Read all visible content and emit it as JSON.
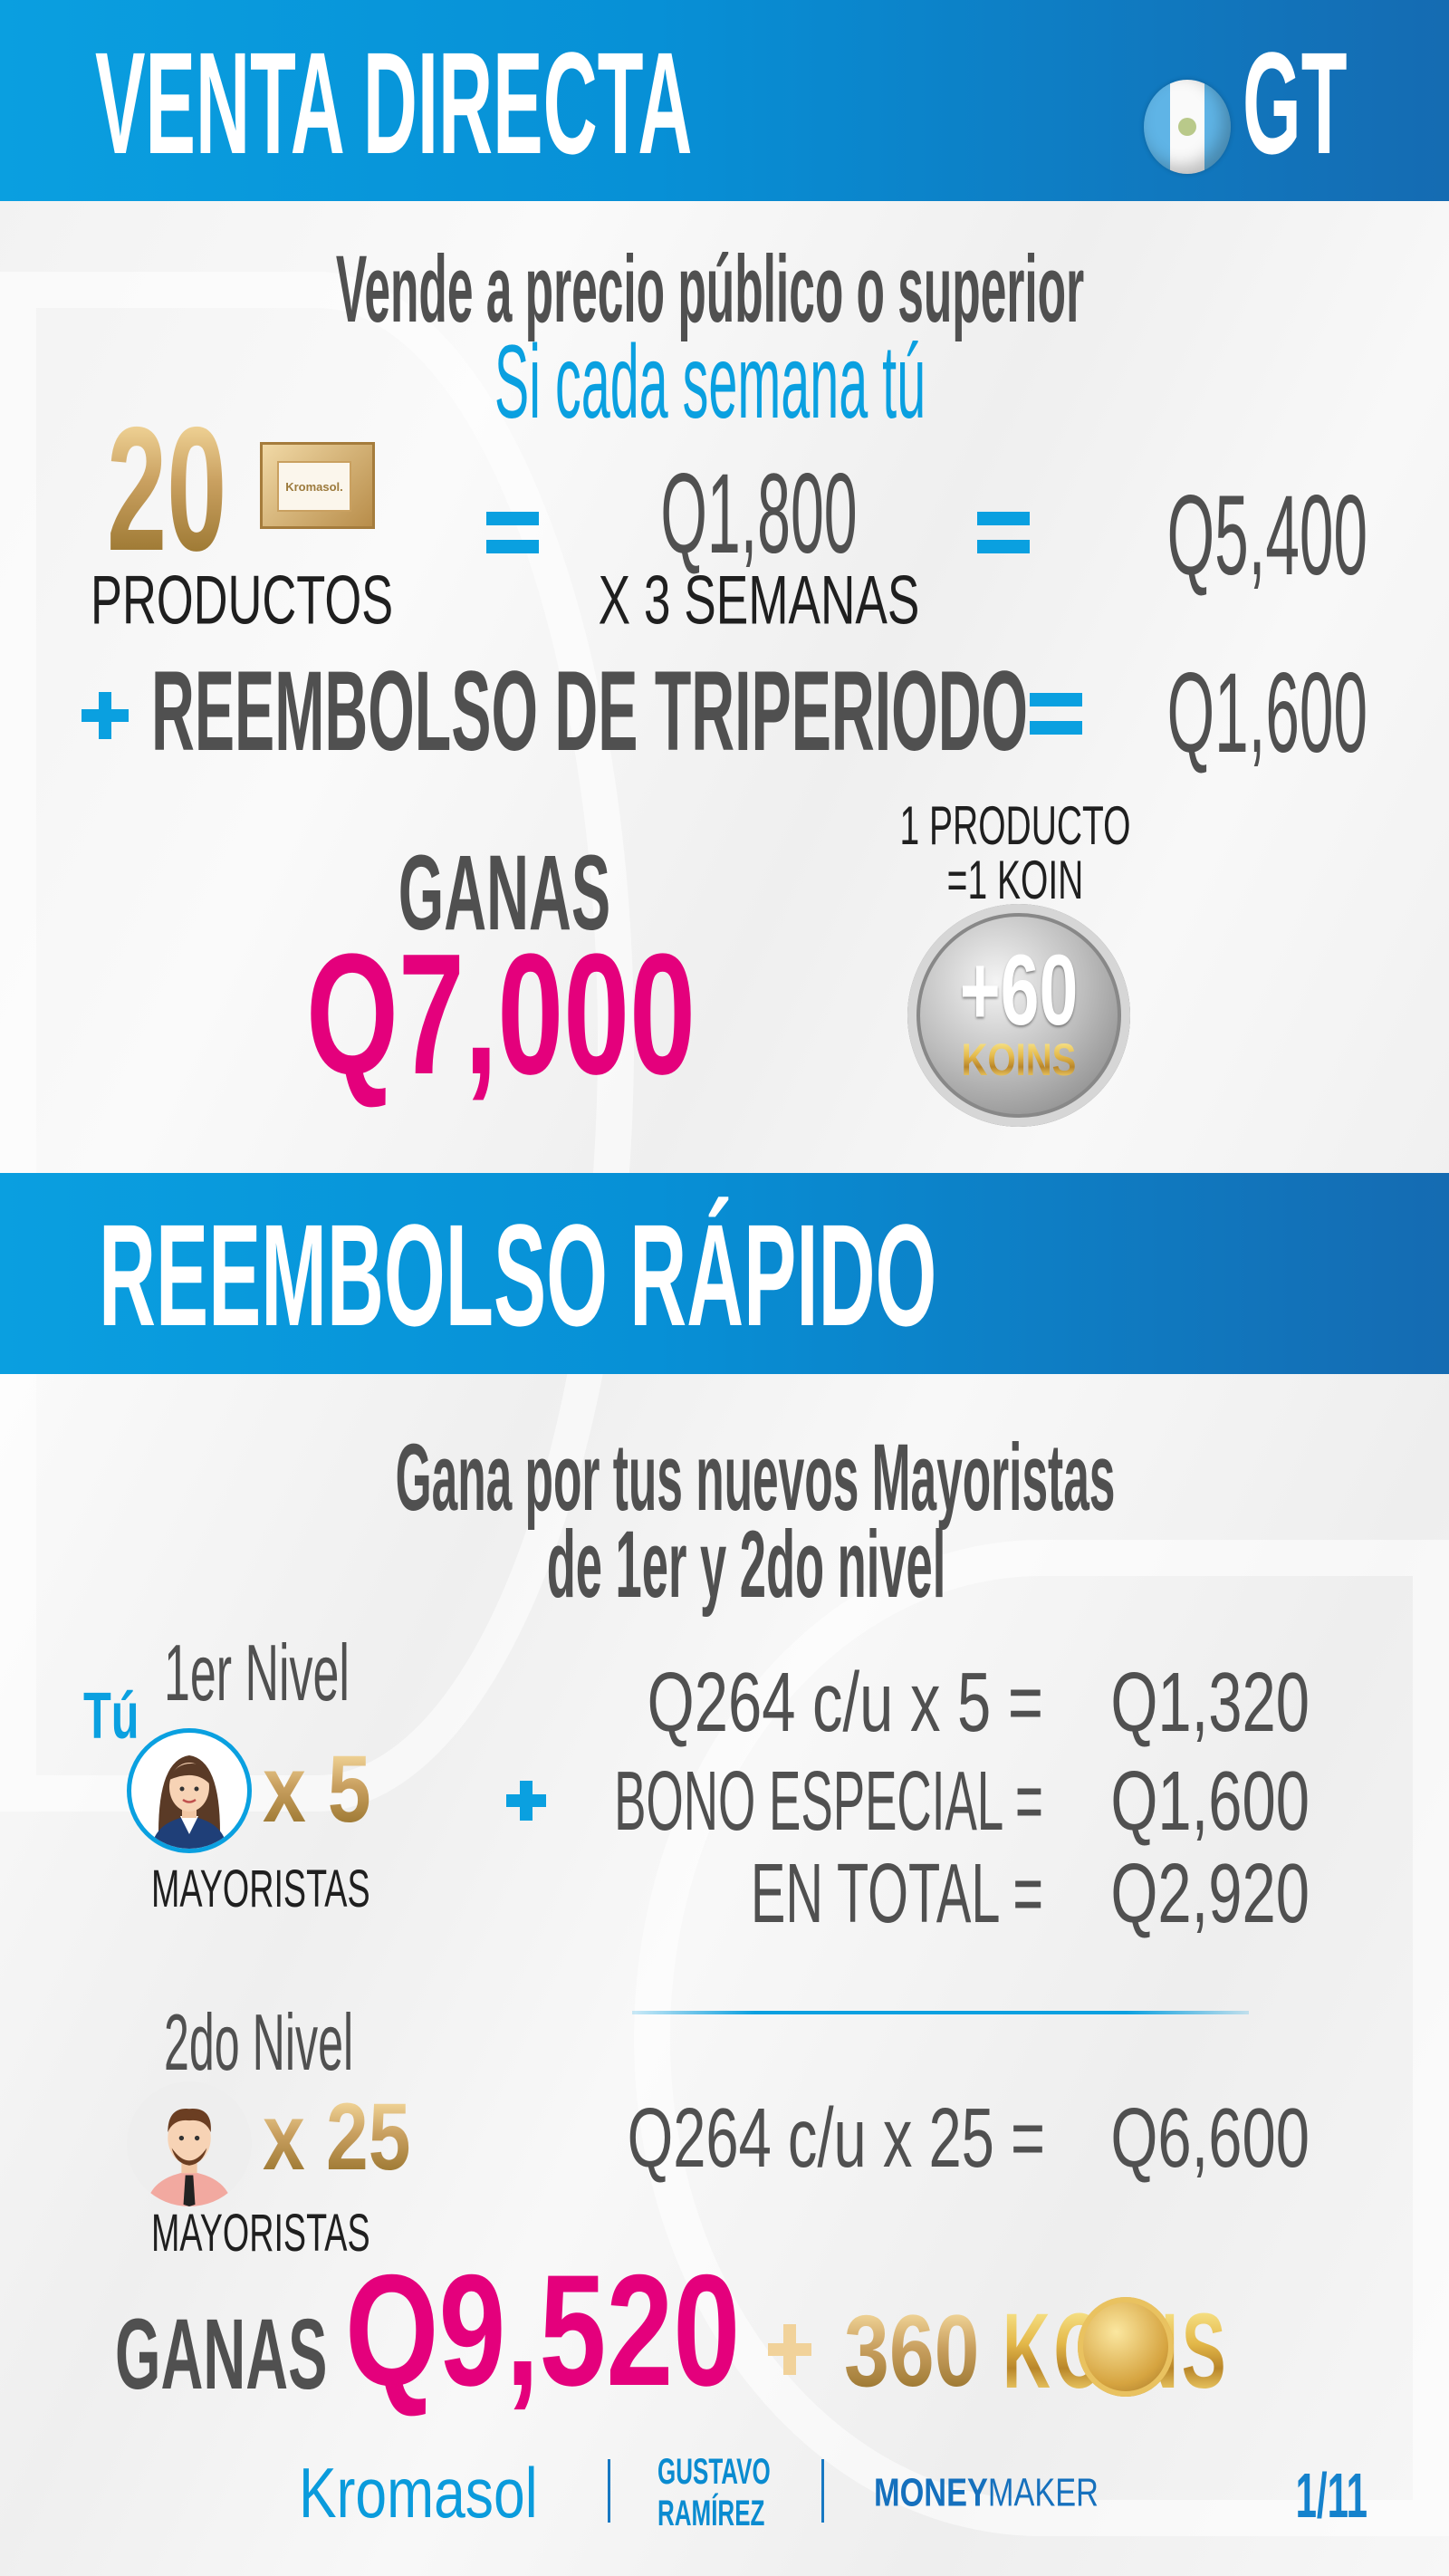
{
  "section1": {
    "title": "VENTA DIRECTA",
    "country": "GT",
    "country_flag_icon": "guatemala-flag-icon",
    "subtitle": "Vende a precio público o superior",
    "subtitle2": "Si cada semana tú",
    "quantity": "20",
    "quantity_label": "PRODUCTOS",
    "box_brand": "Kromasol.",
    "weekly_amount": "Q1,800",
    "weeks_label": "X 3 SEMANAS",
    "total_sales": "Q5,400",
    "refund_label": "REEMBOLSO DE TRIPERIODO",
    "refund_amount": "Q1,600",
    "earn_label": "GANAS",
    "earn_amount": "Q7,000",
    "koin_note_line1": "1 PRODUCTO",
    "koin_note_line2": "=1 KOIN",
    "coin_amount": "+60",
    "coin_label": "KOINS"
  },
  "section2": {
    "title": "REEMBOLSO RÁPIDO",
    "subtitle_line1": "Gana por tus nuevos Mayoristas",
    "subtitle_line2": "de 1er y 2do nivel",
    "you_label": "Tú",
    "level1": {
      "label": "1er Nivel",
      "multiplier": "x 5",
      "unit": "MAYORISTAS",
      "lines": [
        {
          "label": "Q264  c/u x 5 =",
          "value": "Q1,320"
        },
        {
          "label": "BONO ESPECIAL =",
          "value": "Q1,600"
        },
        {
          "label": "EN TOTAL =",
          "value": "Q2,920"
        }
      ]
    },
    "level2": {
      "label": "2do Nivel",
      "multiplier": "x 25",
      "unit": "MAYORISTAS",
      "line": {
        "label": "Q264  c/u x 25 =",
        "value": "Q6,600"
      }
    },
    "earn_label": "GANAS",
    "earn_amount": "Q9,520",
    "koins_amount": "360",
    "koins_label": "KOINS"
  },
  "footer": {
    "brand": "Kromasol",
    "author_line1": "GUSTAVO",
    "author_line2": "RAMÍREZ",
    "program_part1": "MONEY",
    "program_part2": "MAKER",
    "page": "1/11"
  },
  "colors": {
    "accent_blue": "#0aa0e0",
    "header_dark_blue": "#156bb2",
    "pink": "#e4007c",
    "gold": "#c9a060",
    "text_gray": "#505050"
  }
}
